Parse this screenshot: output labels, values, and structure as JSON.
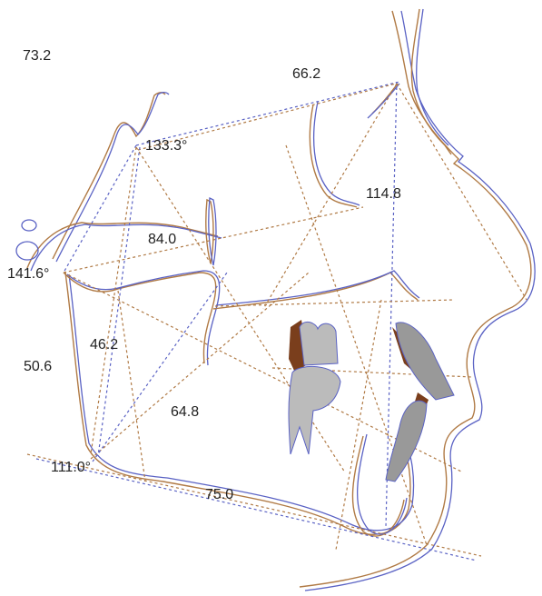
{
  "measurements": [
    "73.2",
    "66.2",
    "133.3°",
    "114.8",
    "84.0",
    "141.6°",
    "46.2",
    "50.6",
    "64.8",
    "111.0°",
    "75.0"
  ]
}
